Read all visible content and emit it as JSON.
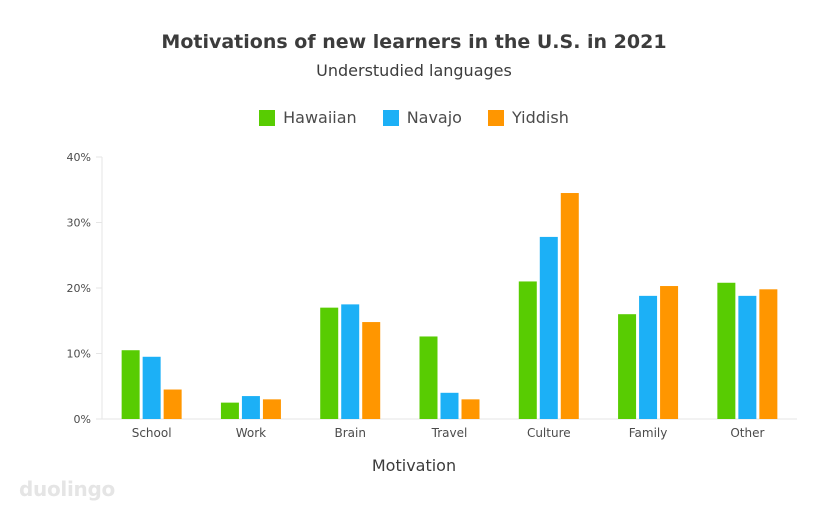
{
  "chart_data": {
    "type": "bar",
    "title": "Motivations of new learners in the U.S. in 2021",
    "subtitle": "Understudied languages",
    "xlabel": "Motivation",
    "ylabel": "",
    "ylim": [
      0,
      40
    ],
    "yticks": [
      "0%",
      "10%",
      "20%",
      "30%",
      "40%"
    ],
    "ytick_values": [
      0,
      10,
      20,
      30,
      40
    ],
    "grid": false,
    "legend_position": "top-center",
    "categories": [
      "School",
      "Work",
      "Brain",
      "Travel",
      "Culture",
      "Family",
      "Other"
    ],
    "series": [
      {
        "name": "Hawaiian",
        "color": "#58cc02",
        "values": [
          10.5,
          2.5,
          17.0,
          12.6,
          21.0,
          16.0,
          20.8
        ]
      },
      {
        "name": "Navajo",
        "color": "#1cb0f6",
        "values": [
          9.5,
          3.5,
          17.5,
          4.0,
          27.8,
          18.8,
          18.8
        ]
      },
      {
        "name": "Yiddish",
        "color": "#ff9600",
        "values": [
          4.5,
          3.0,
          14.8,
          3.0,
          34.5,
          20.3,
          19.8
        ]
      }
    ]
  },
  "brand": {
    "logo_text": "duolingo"
  }
}
